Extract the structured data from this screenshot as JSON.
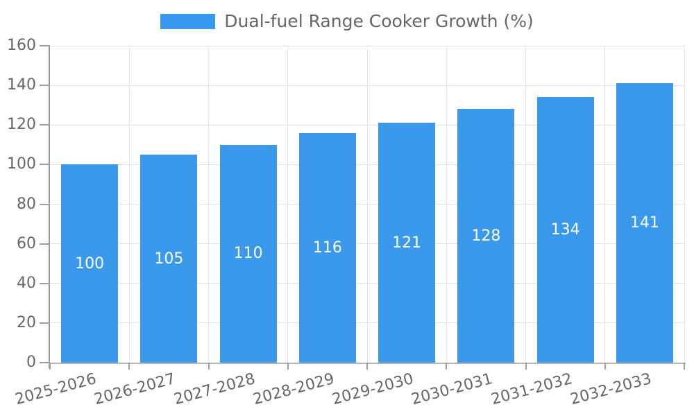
{
  "colors": {
    "bar": "#3B99EC",
    "grid": "#E2E2E2",
    "axis_y": "#979797",
    "axis_x": "#B5B5B5",
    "tick": "#9E9E9E",
    "text": "#666666",
    "value_label": "#FFFFFF",
    "background": "#FFFFFF"
  },
  "chart_data": {
    "type": "bar",
    "title": "",
    "legend_position": "top",
    "series": [
      {
        "name": "Dual-fuel Range Cooker Growth (%)",
        "color": "#3B99EC",
        "values": [
          100,
          105,
          110,
          116,
          121,
          128,
          134,
          141
        ]
      }
    ],
    "categories": [
      "2025-2026",
      "2026-2027",
      "2027-2028",
      "2028-2029",
      "2029-2030",
      "2030-2031",
      "2031-2032",
      "2032-2033"
    ],
    "ylim": [
      0,
      160
    ],
    "y_ticks": [
      0,
      20,
      40,
      60,
      80,
      100,
      120,
      140,
      160
    ],
    "grid": true,
    "bar_value_labels": true,
    "value_label_position": "center",
    "x_tick_rotation_deg": -15
  }
}
